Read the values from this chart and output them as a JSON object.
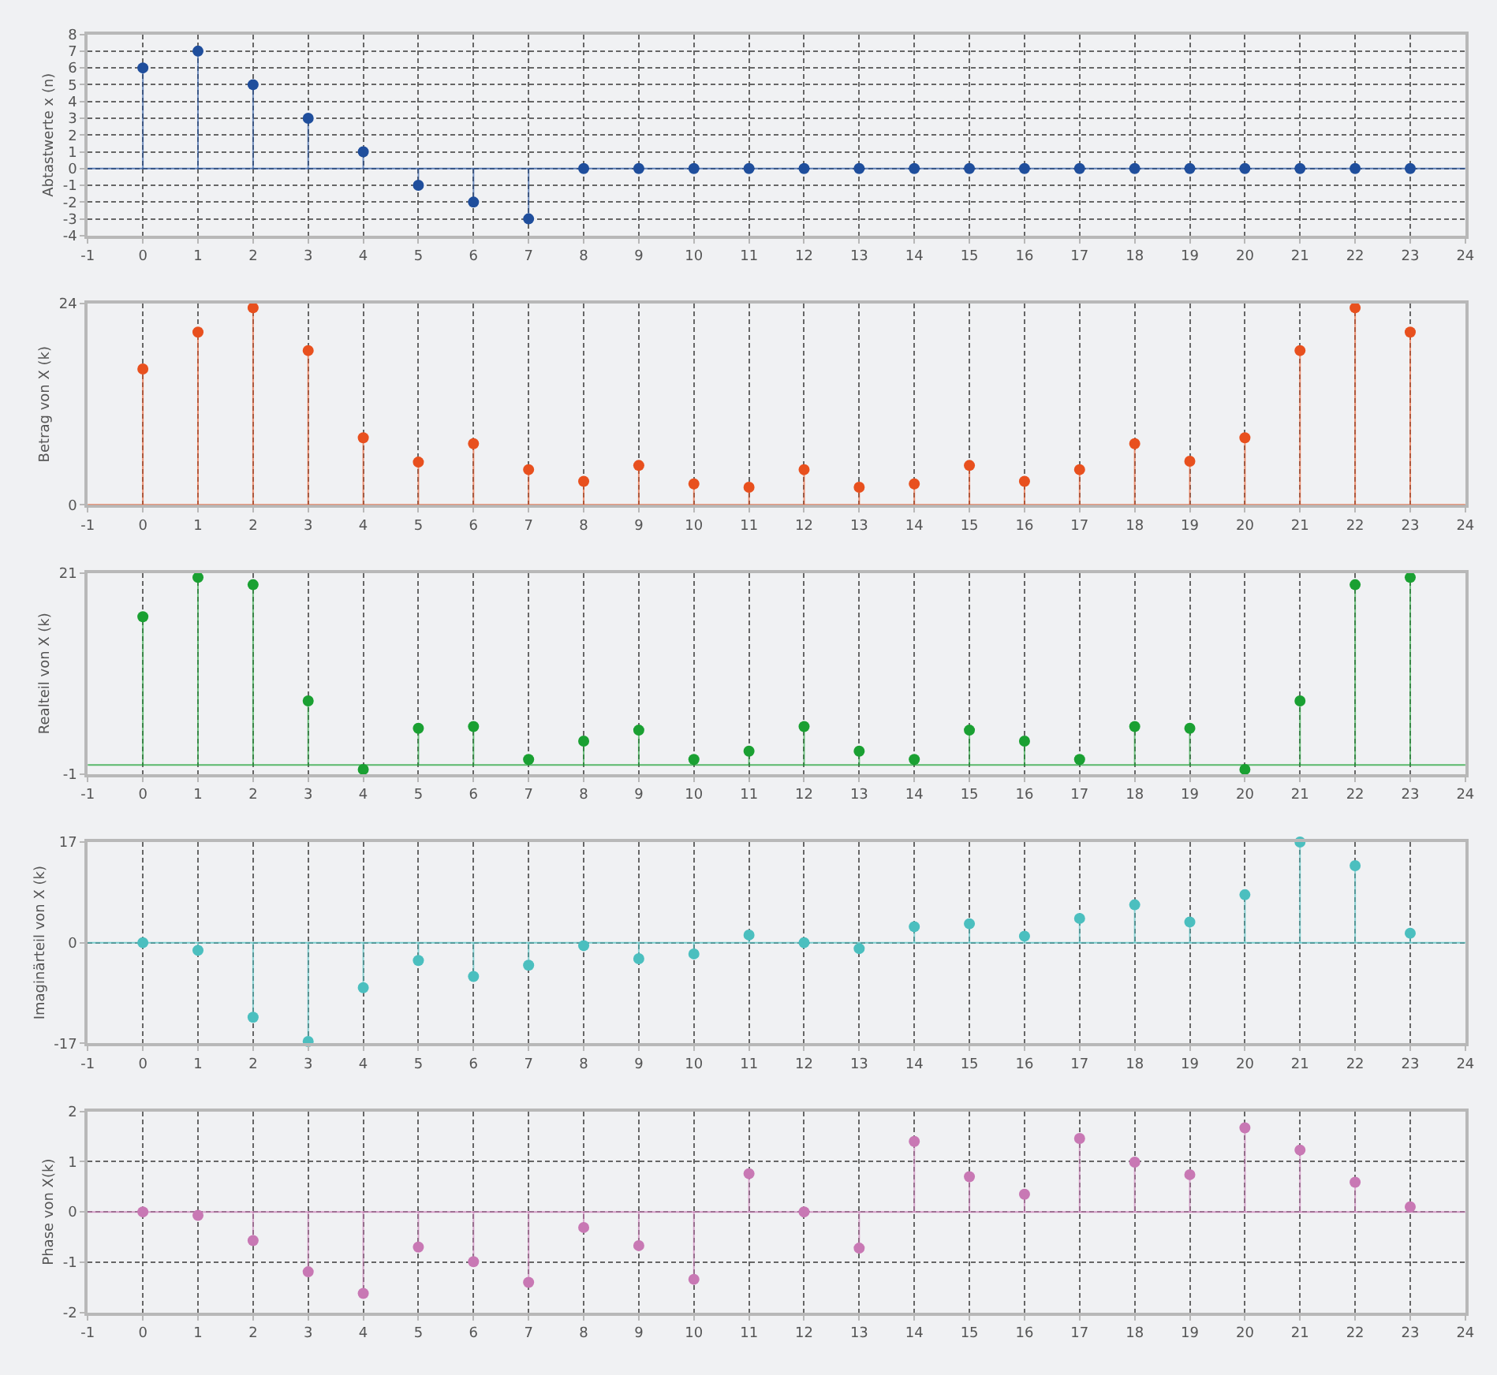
{
  "chart_data": [
    {
      "type": "lollipop",
      "ylabel": "Abtastwerte x (n)",
      "x": [
        0,
        1,
        2,
        3,
        4,
        5,
        6,
        7,
        8,
        9,
        10,
        11,
        12,
        13,
        14,
        15,
        16,
        17,
        18,
        19,
        20,
        21,
        22,
        23
      ],
      "xlim": [
        -1,
        24
      ],
      "xticks": [
        -1,
        0,
        1,
        2,
        3,
        4,
        5,
        6,
        7,
        8,
        9,
        10,
        11,
        12,
        13,
        14,
        15,
        16,
        17,
        18,
        19,
        20,
        21,
        22,
        23,
        24
      ],
      "ylim": [
        -4,
        8
      ],
      "yticks": [
        -4,
        -3,
        -2,
        -1,
        0,
        1,
        2,
        3,
        4,
        5,
        6,
        7,
        8
      ],
      "grid": true,
      "marker": "circle",
      "ref_lines": [
        {
          "axis": "y",
          "value": 0,
          "color": "#1f4e9c"
        }
      ],
      "series": [
        {
          "color": "#1f4e9c",
          "values": [
            6,
            7,
            5,
            3,
            1,
            -1,
            -2,
            -3,
            0,
            0,
            0,
            0,
            0,
            0,
            0,
            0,
            0,
            0,
            0,
            0,
            0,
            0,
            0,
            0
          ]
        }
      ]
    },
    {
      "type": "lollipop",
      "ylabel": "Betrag von X (k)",
      "x": [
        0,
        1,
        2,
        3,
        4,
        5,
        6,
        7,
        8,
        9,
        10,
        11,
        12,
        13,
        14,
        15,
        16,
        17,
        18,
        19,
        20,
        21,
        22,
        23
      ],
      "xlim": [
        -1,
        24
      ],
      "xticks": [
        -1,
        0,
        1,
        2,
        3,
        4,
        5,
        6,
        7,
        8,
        9,
        10,
        11,
        12,
        13,
        14,
        15,
        16,
        17,
        18,
        19,
        20,
        21,
        22,
        23,
        24
      ],
      "ylim": [
        0,
        24
      ],
      "yticks": [
        0,
        24
      ],
      "grid": "x",
      "marker": "circle",
      "ref_lines": [
        {
          "axis": "y",
          "value": 0,
          "color": "#e8501e"
        }
      ],
      "series": [
        {
          "color": "#e8501e",
          "values": [
            16.2,
            20.6,
            23.5,
            18.4,
            8.0,
            5.1,
            7.3,
            4.2,
            2.8,
            4.7,
            2.5,
            2.1,
            4.2,
            2.1,
            2.5,
            4.7,
            2.8,
            4.2,
            7.3,
            5.2,
            8.0,
            18.4,
            23.5,
            20.6
          ]
        }
      ]
    },
    {
      "type": "lollipop",
      "ylabel": "Realteil von X (k)",
      "x": [
        0,
        1,
        2,
        3,
        4,
        5,
        6,
        7,
        8,
        9,
        10,
        11,
        12,
        13,
        14,
        15,
        16,
        17,
        18,
        19,
        20,
        21,
        22,
        23
      ],
      "xlim": [
        -1,
        24
      ],
      "xticks": [
        -1,
        0,
        1,
        2,
        3,
        4,
        5,
        6,
        7,
        8,
        9,
        10,
        11,
        12,
        13,
        14,
        15,
        16,
        17,
        18,
        19,
        20,
        21,
        22,
        23,
        24
      ],
      "ylim": [
        -1,
        21
      ],
      "yticks": [
        -1,
        21
      ],
      "grid": "x",
      "marker": "circle",
      "ref_lines": [
        {
          "axis": "y",
          "value": 0,
          "color": "#1aa032"
        }
      ],
      "series": [
        {
          "color": "#1aa032",
          "values": [
            16.2,
            20.5,
            19.7,
            7.0,
            -0.5,
            4.0,
            4.2,
            0.6,
            2.6,
            3.8,
            0.6,
            1.5,
            4.2,
            1.5,
            0.6,
            3.8,
            2.6,
            0.6,
            4.2,
            4.0,
            -0.5,
            7.0,
            19.7,
            20.5
          ]
        }
      ]
    },
    {
      "type": "lollipop",
      "ylabel": "Imaginärteil von X (k)",
      "x": [
        0,
        1,
        2,
        3,
        4,
        5,
        6,
        7,
        8,
        9,
        10,
        11,
        12,
        13,
        14,
        15,
        16,
        17,
        18,
        19,
        20,
        21,
        22,
        23
      ],
      "xlim": [
        -1,
        24
      ],
      "xticks": [
        -1,
        0,
        1,
        2,
        3,
        4,
        5,
        6,
        7,
        8,
        9,
        10,
        11,
        12,
        13,
        14,
        15,
        16,
        17,
        18,
        19,
        20,
        21,
        22,
        23,
        24
      ],
      "ylim": [
        -17,
        17
      ],
      "yticks": [
        -17,
        0,
        17
      ],
      "grid": true,
      "marker": "circle",
      "ref_lines": [
        {
          "axis": "y",
          "value": 0,
          "color": "#4bbfbf"
        }
      ],
      "series": [
        {
          "color": "#4bbfbf",
          "values": [
            0,
            -1.3,
            -12.6,
            -16.7,
            -7.6,
            -3.0,
            -5.7,
            -3.8,
            -0.5,
            -2.7,
            -1.9,
            1.3,
            0,
            -1.0,
            2.7,
            3.2,
            1.1,
            4.1,
            6.4,
            3.5,
            8.1,
            17,
            13,
            1.6
          ]
        }
      ]
    },
    {
      "type": "lollipop",
      "ylabel": "Phase von X(k)",
      "x": [
        0,
        1,
        2,
        3,
        4,
        5,
        6,
        7,
        8,
        9,
        10,
        11,
        12,
        13,
        14,
        15,
        16,
        17,
        18,
        19,
        20,
        21,
        22,
        23
      ],
      "xlim": [
        -1,
        24
      ],
      "xticks": [
        -1,
        0,
        1,
        2,
        3,
        4,
        5,
        6,
        7,
        8,
        9,
        10,
        11,
        12,
        13,
        14,
        15,
        16,
        17,
        18,
        19,
        20,
        21,
        22,
        23,
        24
      ],
      "ylim": [
        -2,
        2
      ],
      "yticks": [
        -2,
        -1,
        0,
        1,
        2
      ],
      "grid": true,
      "marker": "circle",
      "ref_lines": [
        {
          "axis": "y",
          "value": 0,
          "color": "#c878b4"
        }
      ],
      "series": [
        {
          "color": "#c878b4",
          "values": [
            0,
            -0.07,
            -0.57,
            -1.19,
            -1.62,
            -0.7,
            -0.99,
            -1.4,
            -0.31,
            -0.67,
            -1.34,
            0.76,
            0,
            -0.72,
            1.4,
            0.7,
            0.35,
            1.46,
            0.99,
            0.74,
            1.67,
            1.23,
            0.59,
            0.1
          ]
        }
      ]
    }
  ]
}
